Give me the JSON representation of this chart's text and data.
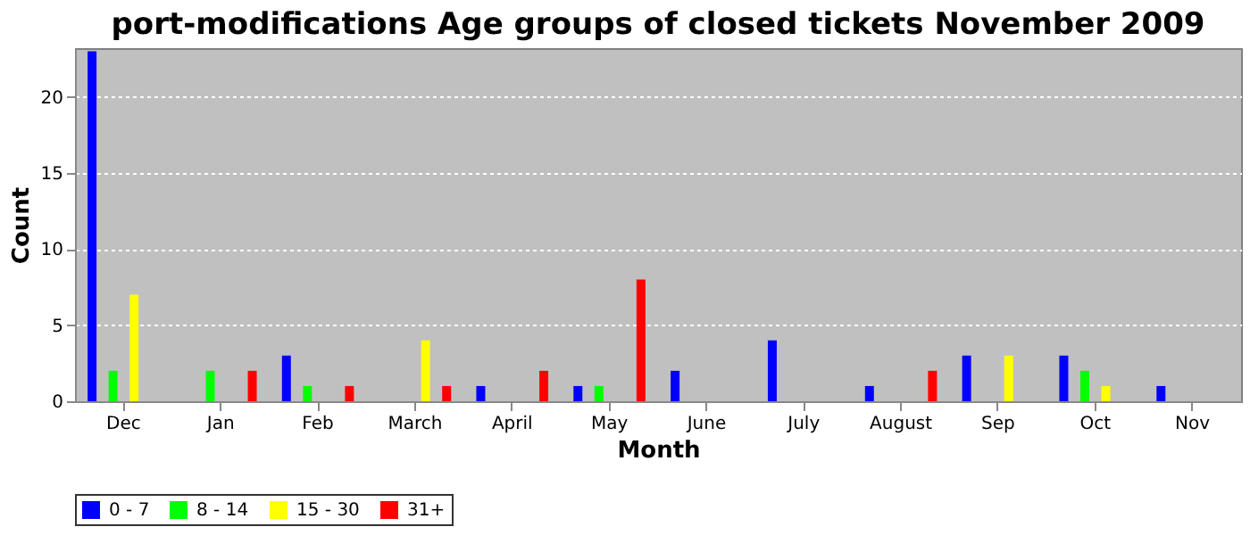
{
  "chart_data": {
    "type": "bar",
    "title": "port-modifications Age groups of closed tickets November 2009",
    "xlabel": "Month",
    "ylabel": "Count",
    "categories": [
      "Dec",
      "Jan",
      "Feb",
      "March",
      "April",
      "May",
      "June",
      "July",
      "August",
      "Sep",
      "Oct",
      "Nov"
    ],
    "series": [
      {
        "name": "0 - 7",
        "color": "#0000ff",
        "values": [
          23,
          0,
          3,
          0,
          1,
          1,
          2,
          4,
          1,
          3,
          3,
          1
        ]
      },
      {
        "name": "8 - 14",
        "color": "#00ff00",
        "values": [
          2,
          2,
          1,
          0,
          0,
          1,
          0,
          0,
          0,
          0,
          2,
          0
        ]
      },
      {
        "name": "15 - 30",
        "color": "#ffff00",
        "values": [
          7,
          0,
          0,
          4,
          0,
          0,
          0,
          0,
          0,
          3,
          1,
          0
        ]
      },
      {
        "name": "31+",
        "color": "#ff0000",
        "values": [
          0,
          2,
          1,
          1,
          2,
          8,
          0,
          0,
          2,
          0,
          0,
          0
        ]
      }
    ],
    "ylim": [
      0,
      23.2
    ],
    "yticks": [
      0,
      5,
      10,
      15,
      20
    ],
    "grid": "y",
    "legend": "bottom"
  }
}
